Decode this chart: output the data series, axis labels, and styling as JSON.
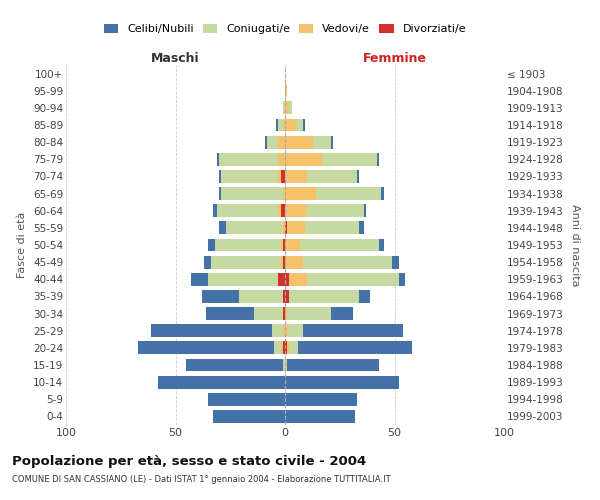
{
  "age_groups": [
    "100+",
    "95-99",
    "90-94",
    "85-89",
    "80-84",
    "75-79",
    "70-74",
    "65-69",
    "60-64",
    "55-59",
    "50-54",
    "45-49",
    "40-44",
    "35-39",
    "30-34",
    "25-29",
    "20-24",
    "15-19",
    "10-14",
    "5-9",
    "0-4"
  ],
  "birth_years": [
    "≤ 1903",
    "1904-1908",
    "1909-1913",
    "1914-1918",
    "1919-1923",
    "1924-1928",
    "1929-1933",
    "1934-1938",
    "1939-1943",
    "1944-1948",
    "1949-1953",
    "1954-1958",
    "1959-1963",
    "1964-1968",
    "1969-1973",
    "1974-1978",
    "1979-1983",
    "1984-1988",
    "1989-1993",
    "1994-1998",
    "1999-2003"
  ],
  "maschi": {
    "celibi": [
      0,
      0,
      0,
      1,
      1,
      1,
      1,
      1,
      2,
      3,
      3,
      3,
      8,
      17,
      22,
      55,
      62,
      44,
      58,
      35,
      33
    ],
    "coniugati": [
      0,
      0,
      1,
      2,
      5,
      27,
      26,
      28,
      28,
      26,
      30,
      32,
      32,
      20,
      13,
      5,
      3,
      1,
      0,
      0,
      0
    ],
    "vedovi": [
      0,
      0,
      0,
      1,
      3,
      3,
      1,
      1,
      1,
      1,
      1,
      1,
      0,
      0,
      0,
      1,
      1,
      0,
      0,
      0,
      0
    ],
    "divorziati": [
      0,
      0,
      0,
      0,
      0,
      0,
      2,
      0,
      2,
      0,
      1,
      1,
      3,
      1,
      1,
      0,
      1,
      0,
      0,
      0,
      0
    ]
  },
  "femmine": {
    "nubili": [
      0,
      0,
      0,
      1,
      1,
      1,
      1,
      1,
      1,
      2,
      2,
      3,
      3,
      5,
      10,
      46,
      52,
      42,
      52,
      33,
      32
    ],
    "coniugate": [
      0,
      0,
      1,
      3,
      8,
      25,
      23,
      30,
      26,
      25,
      36,
      41,
      42,
      32,
      20,
      7,
      4,
      1,
      0,
      0,
      0
    ],
    "vedove": [
      0,
      1,
      2,
      5,
      13,
      17,
      10,
      14,
      10,
      8,
      7,
      8,
      8,
      0,
      1,
      1,
      1,
      0,
      0,
      0,
      0
    ],
    "divorziate": [
      0,
      0,
      0,
      0,
      0,
      0,
      0,
      0,
      0,
      1,
      0,
      0,
      2,
      2,
      0,
      0,
      1,
      0,
      0,
      0,
      0
    ]
  },
  "colors": {
    "celibi": "#4472a8",
    "coniugati": "#c5d9a0",
    "vedovi": "#f5c26b",
    "divorziati": "#d13030"
  },
  "title": "Popolazione per età, sesso e stato civile - 2004",
  "subtitle": "COMUNE DI SAN CASSIANO (LE) - Dati ISTAT 1° gennaio 2004 - Elaborazione TUTTITALIA.IT",
  "maschi_label": "Maschi",
  "femmine_label": "Femmine",
  "ylabel_left": "Fasce di età",
  "ylabel_right": "Anni di nascita",
  "legend_labels": [
    "Celibi/Nubili",
    "Coniugati/e",
    "Vedovi/e",
    "Divorziati/e"
  ],
  "xlim": 100,
  "background_color": "#ffffff",
  "grid_color": "#cccccc"
}
